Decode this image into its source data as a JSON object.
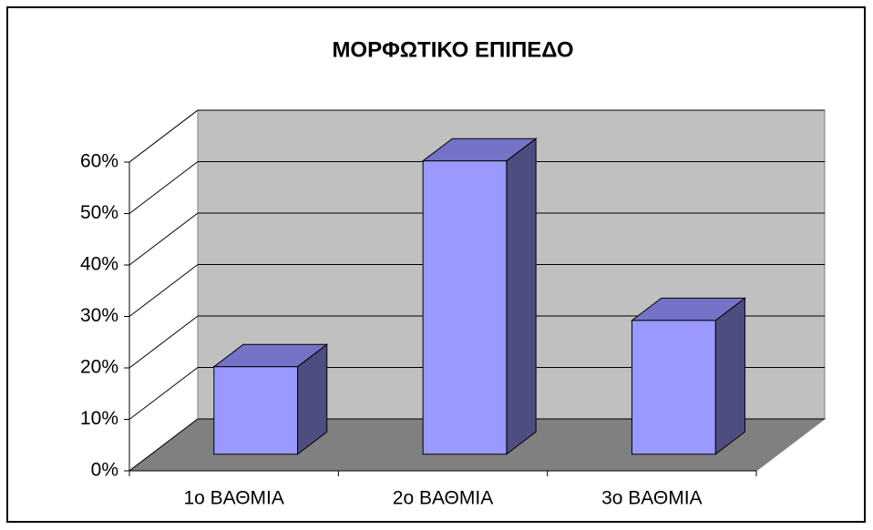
{
  "chart_data": {
    "type": "bar3d",
    "title": "ΜΟΡΦΩΤΙΚΟ ΕΠΙΠΕΔΟ",
    "categories": [
      "1ο ΒΑΘΜΙΑ",
      "2ο ΒΑΘΜΙΑ",
      "3ο ΒΑΘΜΙΑ"
    ],
    "values": [
      17,
      57,
      26
    ],
    "color": "#9999ff",
    "ylim": [
      0,
      60
    ],
    "yticks": [
      {
        "value": 0,
        "label": "0%"
      },
      {
        "value": 10,
        "label": "10%"
      },
      {
        "value": 20,
        "label": "20%"
      },
      {
        "value": 30,
        "label": "30%"
      },
      {
        "value": 40,
        "label": "40%"
      },
      {
        "value": 50,
        "label": "50%"
      },
      {
        "value": 60,
        "label": "60%"
      }
    ],
    "grid": true
  }
}
